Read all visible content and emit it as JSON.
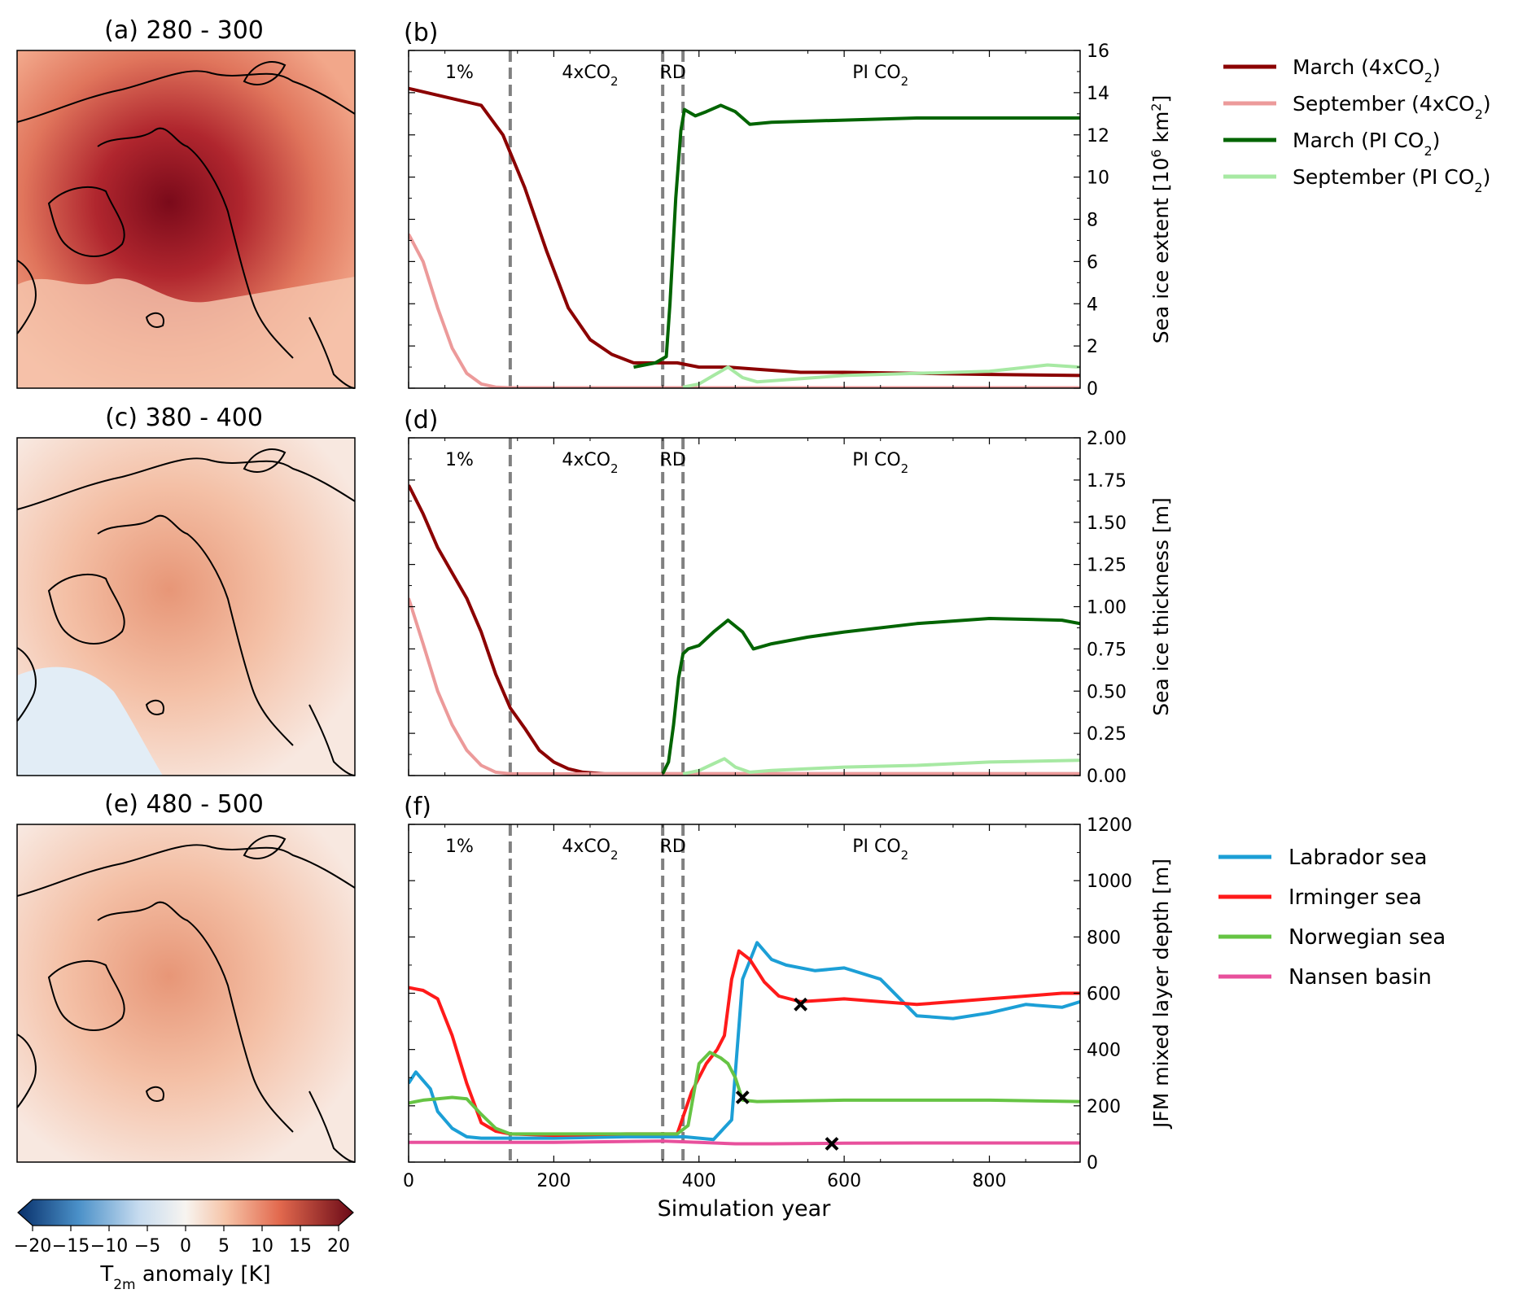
{
  "maps": [
    {
      "title": "(a) 280 - 300",
      "level": 0.85
    },
    {
      "title": "(c) 380 - 400",
      "level": 0.35
    },
    {
      "title": "(e) 480 - 500",
      "level": 0.32
    }
  ],
  "colorbar": {
    "label": "T",
    "label_sub": "2m",
    "label_tail": " anomaly [K]",
    "ticks": [
      "−20",
      "−15",
      "−10",
      "−5",
      "0",
      "5",
      "10",
      "15",
      "20"
    ],
    "range": [
      -20,
      20
    ]
  },
  "period_labels": [
    "1%",
    "4xCO",
    "RD",
    "PI CO"
  ],
  "period_boundaries": [
    140,
    350,
    378
  ],
  "xlabel": "Simulation year",
  "colors": {
    "march_4x": "#8b0000",
    "sept_4x": "#ec9a9a",
    "march_pi": "#006400",
    "sept_pi": "#a7e9a3",
    "labrador": "#1c9fd6",
    "irminger": "#ff1a1a",
    "norwegian": "#66c444",
    "nansen": "#e8509c",
    "boundary": "#808080"
  },
  "legend_top": [
    {
      "name": "March (4xCO",
      "tail": ")",
      "key": "march_4x"
    },
    {
      "name": "September (4xCO",
      "tail": ")",
      "key": "sept_4x"
    },
    {
      "name": "March (PI CO",
      "tail": ")",
      "key": "march_pi"
    },
    {
      "name": "September (PI CO",
      "tail": ")",
      "key": "sept_pi"
    }
  ],
  "legend_bottom": [
    {
      "name": "Labrador sea",
      "key": "labrador"
    },
    {
      "name": "Irminger sea",
      "key": "irminger"
    },
    {
      "name": "Norwegian sea",
      "key": "norwegian"
    },
    {
      "name": "Nansen basin",
      "key": "nansen"
    }
  ],
  "chart_data": [
    {
      "type": "line",
      "panel": "(b)",
      "ylabel": "Sea ice extent [10",
      "ylabel_sup": "6",
      "ylabel_tail": " km",
      "ylabel_sup2": "2",
      "ylabel_end": "]",
      "xlim": [
        0,
        925
      ],
      "ylim": [
        0,
        16
      ],
      "xticks": [
        0,
        200,
        400,
        600,
        800
      ],
      "yticks": [
        0,
        2,
        4,
        6,
        8,
        10,
        12,
        14,
        16
      ],
      "series": [
        {
          "key": "march_4x",
          "x": [
            0,
            50,
            100,
            130,
            160,
            190,
            220,
            250,
            280,
            310,
            340,
            370,
            400,
            440,
            480,
            540,
            600,
            700,
            800,
            925
          ],
          "values": [
            14.2,
            13.8,
            13.4,
            12,
            9.5,
            6.5,
            3.8,
            2.3,
            1.6,
            1.2,
            1.2,
            1.2,
            1.0,
            1.0,
            0.9,
            0.75,
            0.75,
            0.7,
            0.65,
            0.6
          ]
        },
        {
          "key": "sept_4x",
          "x": [
            0,
            20,
            40,
            60,
            80,
            100,
            120,
            140,
            925
          ],
          "values": [
            7.3,
            6.0,
            3.8,
            1.9,
            0.7,
            0.2,
            0.05,
            0.02,
            0.02
          ]
        },
        {
          "key": "march_pi",
          "x": [
            310,
            340,
            355,
            360,
            368,
            375,
            380,
            395,
            410,
            430,
            450,
            470,
            500,
            600,
            700,
            800,
            925
          ],
          "values": [
            1.0,
            1.2,
            1.5,
            4.0,
            9.0,
            12.2,
            13.2,
            12.9,
            13.1,
            13.4,
            13.1,
            12.5,
            12.6,
            12.7,
            12.8,
            12.8,
            12.8
          ]
        },
        {
          "key": "sept_pi",
          "x": [
            378,
            400,
            420,
            440,
            460,
            480,
            520,
            600,
            700,
            800,
            880,
            925
          ],
          "values": [
            0.05,
            0.2,
            0.6,
            1.0,
            0.5,
            0.3,
            0.4,
            0.6,
            0.7,
            0.8,
            1.1,
            1.0
          ]
        }
      ]
    },
    {
      "type": "line",
      "panel": "(d)",
      "ylabel": "Sea ice thickness [m]",
      "xlim": [
        0,
        925
      ],
      "ylim": [
        0,
        2
      ],
      "xticks": [
        0,
        200,
        400,
        600,
        800
      ],
      "yticks": [
        "0.00",
        "0.25",
        "0.50",
        "0.75",
        "1.00",
        "1.25",
        "1.50",
        "1.75",
        "2.00"
      ],
      "series": [
        {
          "key": "march_4x",
          "x": [
            0,
            20,
            40,
            60,
            80,
            100,
            120,
            140,
            160,
            180,
            200,
            220,
            240,
            270,
            300,
            925
          ],
          "values": [
            1.72,
            1.55,
            1.35,
            1.2,
            1.05,
            0.85,
            0.6,
            0.4,
            0.28,
            0.15,
            0.08,
            0.04,
            0.02,
            0.01,
            0.01,
            0.01
          ]
        },
        {
          "key": "sept_4x",
          "x": [
            0,
            20,
            40,
            60,
            80,
            100,
            120,
            140,
            925
          ],
          "values": [
            1.05,
            0.78,
            0.5,
            0.3,
            0.15,
            0.06,
            0.02,
            0.01,
            0.01
          ]
        },
        {
          "key": "march_pi",
          "x": [
            350,
            358,
            365,
            372,
            378,
            385,
            400,
            420,
            440,
            460,
            475,
            500,
            550,
            600,
            700,
            800,
            900,
            925
          ],
          "values": [
            0.01,
            0.08,
            0.3,
            0.58,
            0.72,
            0.75,
            0.77,
            0.85,
            0.92,
            0.85,
            0.75,
            0.78,
            0.82,
            0.85,
            0.9,
            0.93,
            0.92,
            0.9
          ]
        },
        {
          "key": "sept_pi",
          "x": [
            378,
            400,
            420,
            435,
            450,
            470,
            500,
            600,
            700,
            800,
            925
          ],
          "values": [
            0.01,
            0.03,
            0.07,
            0.1,
            0.05,
            0.02,
            0.03,
            0.05,
            0.06,
            0.08,
            0.09
          ]
        }
      ]
    },
    {
      "type": "line",
      "panel": "(f)",
      "ylabel": "JFM mixed layer depth [m]",
      "xlim": [
        0,
        925
      ],
      "ylim": [
        0,
        1200
      ],
      "xticks": [
        0,
        200,
        400,
        600,
        800
      ],
      "yticks": [
        0,
        200,
        400,
        600,
        800,
        1000,
        1200
      ],
      "series": [
        {
          "key": "labrador",
          "x": [
            0,
            10,
            20,
            30,
            40,
            60,
            80,
            100,
            150,
            200,
            300,
            380,
            420,
            445,
            455,
            460,
            480,
            500,
            520,
            560,
            600,
            650,
            700,
            750,
            800,
            850,
            900,
            925
          ],
          "values": [
            280,
            320,
            290,
            260,
            180,
            120,
            90,
            85,
            85,
            85,
            90,
            90,
            80,
            150,
            480,
            650,
            780,
            720,
            700,
            680,
            690,
            650,
            520,
            510,
            530,
            560,
            550,
            570
          ]
        },
        {
          "key": "irminger",
          "x": [
            0,
            20,
            40,
            60,
            80,
            100,
            120,
            140,
            200,
            300,
            370,
            390,
            410,
            425,
            435,
            445,
            455,
            470,
            490,
            510,
            540,
            600,
            650,
            700,
            750,
            800,
            850,
            900,
            925
          ],
          "values": [
            620,
            610,
            580,
            450,
            280,
            140,
            110,
            100,
            95,
            100,
            100,
            250,
            350,
            400,
            450,
            650,
            750,
            720,
            640,
            590,
            570,
            580,
            570,
            560,
            570,
            580,
            590,
            600,
            600
          ]
        },
        {
          "key": "norwegian",
          "x": [
            0,
            20,
            40,
            60,
            80,
            100,
            120,
            140,
            200,
            300,
            370,
            385,
            400,
            415,
            430,
            440,
            450,
            460,
            480,
            600,
            700,
            800,
            925
          ],
          "values": [
            210,
            220,
            225,
            230,
            225,
            170,
            120,
            100,
            100,
            100,
            100,
            130,
            350,
            390,
            370,
            350,
            300,
            220,
            215,
            220,
            220,
            220,
            215
          ]
        },
        {
          "key": "nansen",
          "x": [
            0,
            200,
            350,
            400,
            450,
            500,
            600,
            700,
            800,
            925
          ],
          "values": [
            70,
            70,
            75,
            70,
            65,
            65,
            67,
            68,
            68,
            68
          ]
        }
      ],
      "markers": [
        {
          "x": 460,
          "y": 230
        },
        {
          "x": 540,
          "y": 560
        },
        {
          "x": 583,
          "y": 65
        }
      ]
    }
  ]
}
